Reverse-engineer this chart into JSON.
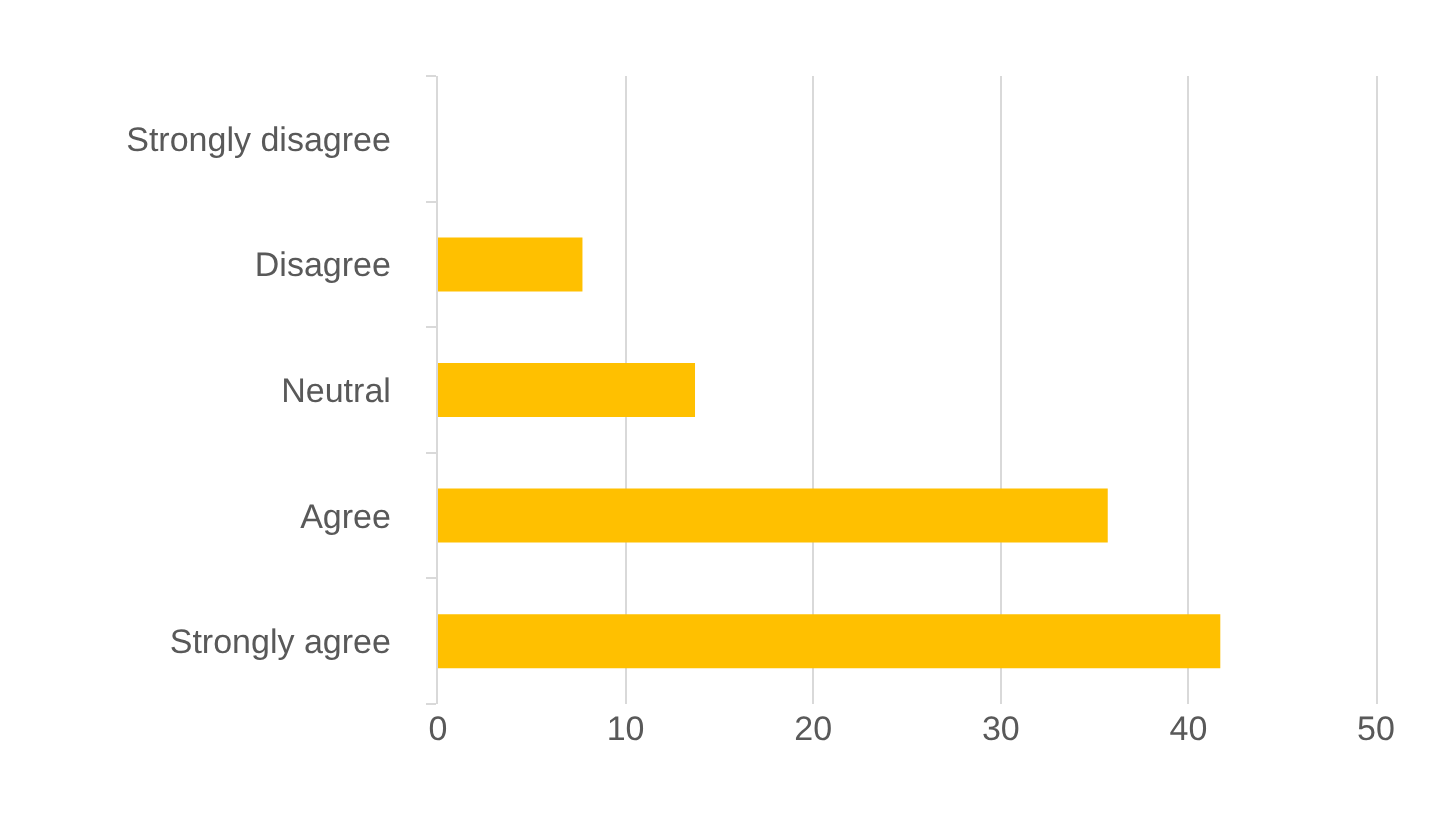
{
  "chart_data": {
    "type": "bar",
    "orientation": "horizontal",
    "categories": [
      "Strongly disagree",
      "Disagree",
      "Neutral",
      "Agree",
      "Strongly agree"
    ],
    "values": [
      0,
      7.7,
      13.7,
      35.7,
      41.7
    ],
    "color": "#ffc000",
    "xlim": [
      0,
      50
    ],
    "xticks": [
      0,
      10,
      20,
      30,
      40,
      50
    ],
    "grid": "x"
  }
}
